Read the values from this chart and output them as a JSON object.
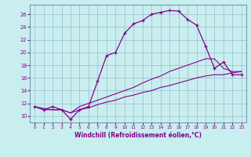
{
  "bg_color": "#c8eef0",
  "line_color": "#880088",
  "grid_color": "#99bbcc",
  "hours": [
    0,
    1,
    2,
    3,
    4,
    5,
    6,
    7,
    8,
    9,
    10,
    11,
    12,
    13,
    14,
    15,
    16,
    17,
    18,
    19,
    20,
    21,
    22,
    23
  ],
  "temp_line": [
    11.5,
    11.0,
    11.5,
    11.0,
    9.5,
    11.0,
    11.5,
    15.5,
    19.5,
    20.0,
    23.0,
    24.5,
    25.0,
    26.0,
    26.3,
    26.6,
    26.5,
    25.2,
    24.3,
    21.0,
    17.5,
    18.5,
    16.5,
    16.5
  ],
  "wc_upper_line": [
    11.5,
    11.2,
    11.0,
    11.0,
    10.5,
    11.5,
    12.0,
    12.5,
    13.0,
    13.5,
    14.0,
    14.5,
    15.2,
    15.8,
    16.3,
    17.0,
    17.5,
    18.0,
    18.5,
    19.0,
    19.0,
    17.5,
    17.0,
    17.0
  ],
  "wc_lower_line": [
    11.5,
    11.0,
    11.0,
    11.0,
    10.5,
    11.0,
    11.3,
    11.8,
    12.2,
    12.5,
    13.0,
    13.3,
    13.7,
    14.0,
    14.5,
    14.8,
    15.2,
    15.6,
    16.0,
    16.3,
    16.5,
    16.5,
    16.8,
    17.0
  ],
  "xlim": [
    -0.5,
    23.5
  ],
  "ylim": [
    9.0,
    27.5
  ],
  "yticks": [
    10,
    12,
    14,
    16,
    18,
    20,
    22,
    24,
    26
  ],
  "xticks": [
    0,
    1,
    2,
    3,
    4,
    5,
    6,
    7,
    8,
    9,
    10,
    11,
    12,
    13,
    14,
    15,
    16,
    17,
    18,
    19,
    20,
    21,
    22,
    23
  ],
  "xlabel": "Windchill (Refroidissement éolien,°C)",
  "figsize": [
    3.2,
    2.0
  ],
  "dpi": 100
}
